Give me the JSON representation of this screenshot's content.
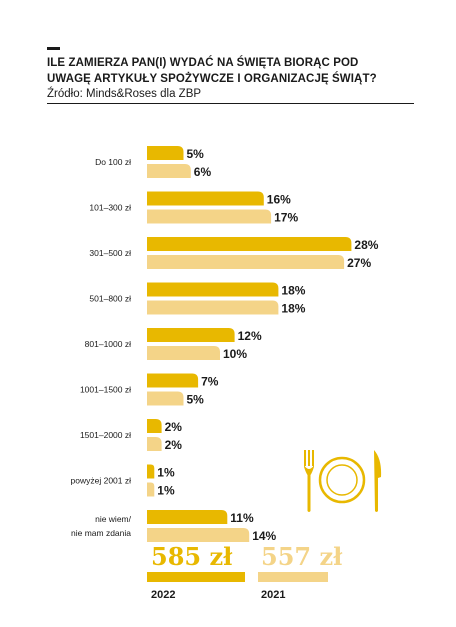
{
  "header": {
    "title_line1": "ILE ZAMIERZA PAN(I) WYDAĆ NA ŚWIĘTA BIORĄC POD",
    "title_line2": "UWAGĘ ARTYKUŁY SPOŻYWCZE I ORGANIZACJĘ ŚWIĄT?",
    "source": "Źródło: Minds&Roses dla ZBP"
  },
  "colors": {
    "y2022": "#e8b800",
    "y2021": "#f4d488",
    "text": "#1a1a1a"
  },
  "chart_data": {
    "type": "bar",
    "orientation": "horizontal",
    "categories": [
      [
        "Do 100 zł"
      ],
      [
        "101–300 zł"
      ],
      [
        "301–500 zł"
      ],
      [
        "501–800 zł"
      ],
      [
        "801–1000 zł"
      ],
      [
        "1001–1500 zł"
      ],
      [
        "1501–2000 zł"
      ],
      [
        "powyżej 2001 zł"
      ],
      [
        "nie wiem/",
        "nie mam zdania"
      ]
    ],
    "series": [
      {
        "name": "2022",
        "color": "#e8b800",
        "values": [
          5,
          16,
          28,
          18,
          12,
          7,
          2,
          1,
          11
        ],
        "labels": [
          "5%",
          "16%",
          "28%",
          "18%",
          "12%",
          "7%",
          "2%",
          "1%",
          "11%"
        ]
      },
      {
        "name": "2021",
        "color": "#f4d488",
        "values": [
          6,
          17,
          27,
          18,
          10,
          5,
          2,
          1,
          14
        ],
        "labels": [
          "6%",
          "17%",
          "27%",
          "18%",
          "10%",
          "5%",
          "2%",
          "1%",
          "14%"
        ]
      }
    ],
    "unit": "%",
    "grid": false,
    "legend": "bottom"
  },
  "summary": {
    "items": [
      {
        "value": "585 zł",
        "year": "2022"
      },
      {
        "value": "557 zł",
        "year": "2021"
      }
    ]
  },
  "icons": [
    "cutlery-icon"
  ]
}
